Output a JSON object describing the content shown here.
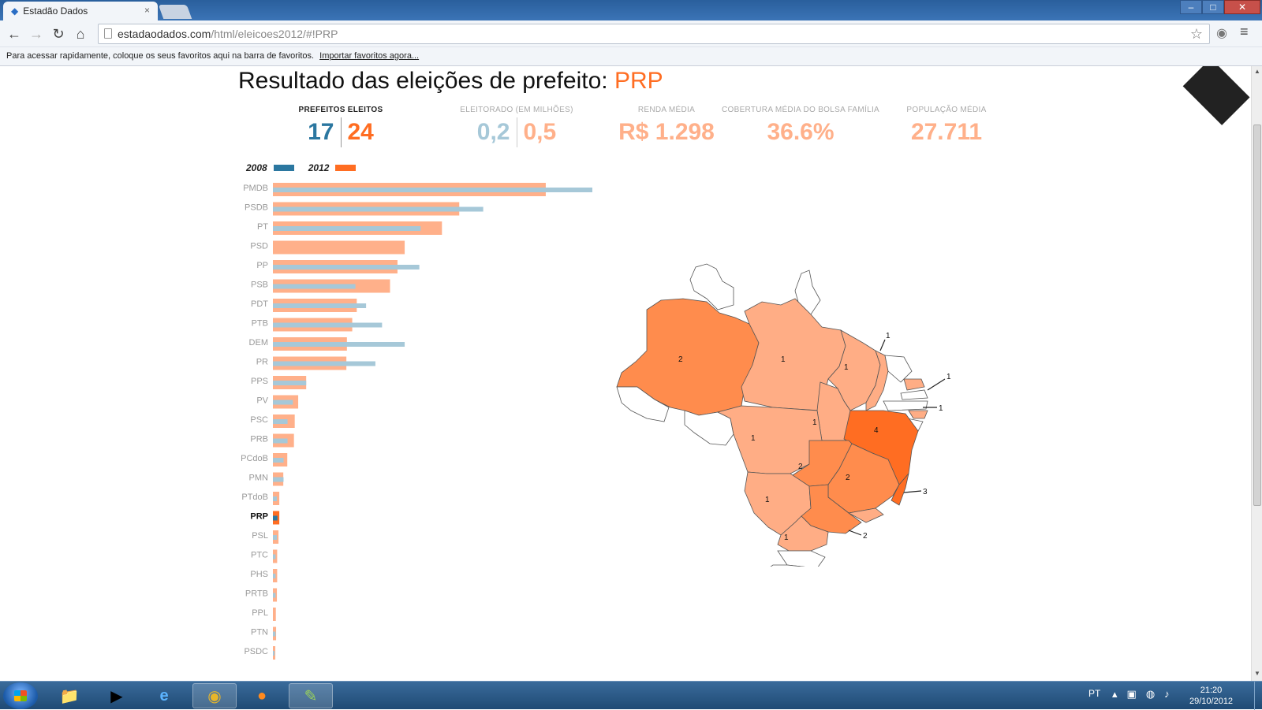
{
  "browser": {
    "tab_title": "Estadão Dados",
    "tab_close": "×",
    "url_host": "estadaodados.com",
    "url_path": "/html/eleicoes2012/#!PRP",
    "bookmarks_text": "Para acessar rapidamente, coloque os seus favoritos aqui na barra de favoritos.",
    "bookmarks_link": "Importar favoritos agora..."
  },
  "page": {
    "title_prefix": "Resultado das eleições de prefeito: ",
    "party": "PRP",
    "stats": {
      "prefeitos_label": "PREFEITOS ELEITOS",
      "prefeitos_2008": "17",
      "prefeitos_2012": "24",
      "eleitorado_label": "ELEITORADO (EM MILHÕES)",
      "eleitorado_2008": "0,2",
      "eleitorado_2012": "0,5",
      "renda_label": "RENDA MÉDIA",
      "renda_value": "R$ 1.298",
      "bolsa_label": "COBERTURA MÉDIA DO BOLSA FAMÍLIA",
      "bolsa_value": "36.6%",
      "populacao_label": "POPULAÇÃO MÉDIA",
      "populacao_value": "27.711"
    },
    "legend": {
      "y2008": "2008",
      "y2012": "2012"
    }
  },
  "colors": {
    "c2008": "#2b77a0",
    "c2012": "#ff6d22",
    "c2008_light": "#a6c8d8",
    "c2012_light": "#ffb08a",
    "map_high": "#ff6d22",
    "map_mid": "#ff8c4d",
    "map_low": "#ffad85",
    "map_none": "#ffffff"
  },
  "chart_data": {
    "type": "bar",
    "orientation": "horizontal",
    "highlight": "PRP",
    "categories": [
      "PMDB",
      "PSDB",
      "PT",
      "PSD",
      "PP",
      "PSB",
      "PDT",
      "PTB",
      "DEM",
      "PR",
      "PPS",
      "PV",
      "PSC",
      "PRB",
      "PCdoB",
      "PMN",
      "PTdoB",
      "PRP",
      "PSL",
      "PTC",
      "PHS",
      "PRTB",
      "PPL",
      "PTN",
      "PSDC"
    ],
    "series": [
      {
        "name": "2008",
        "values": [
          1200,
          790,
          555,
          0,
          550,
          310,
          350,
          410,
          495,
          385,
          125,
          75,
          55,
          55,
          40,
          40,
          15,
          17,
          15,
          10,
          10,
          10,
          0,
          10,
          5
        ]
      },
      {
        "name": "2012",
        "values": [
          1025,
          700,
          635,
          495,
          468,
          440,
          315,
          298,
          278,
          276,
          125,
          95,
          82,
          79,
          54,
          39,
          24,
          24,
          21,
          16,
          16,
          15,
          11,
          12,
          9
        ]
      }
    ],
    "xlim": [
      0,
      1250
    ]
  },
  "map_data": {
    "states": [
      {
        "code": "AM",
        "label": "2",
        "level": "mid"
      },
      {
        "code": "PA",
        "label": "1",
        "level": "low"
      },
      {
        "code": "MA",
        "label": "1",
        "level": "low"
      },
      {
        "code": "TO",
        "label": "1",
        "level": "low"
      },
      {
        "code": "MT",
        "label": "1",
        "level": "low"
      },
      {
        "code": "BA",
        "label": "4",
        "level": "high"
      },
      {
        "code": "GO",
        "label": "2",
        "level": "mid"
      },
      {
        "code": "MG",
        "label": "2",
        "level": "mid"
      },
      {
        "code": "MS",
        "label": "1",
        "level": "low"
      },
      {
        "code": "SP",
        "label": "",
        "level": "mid"
      },
      {
        "code": "PR",
        "label": "1",
        "level": "low"
      },
      {
        "code": "ES",
        "label": "3",
        "level": "high"
      },
      {
        "code": "RN",
        "label": "1",
        "level": "low"
      },
      {
        "code": "AL",
        "label": "1",
        "level": "low"
      },
      {
        "code": "PI",
        "label": "",
        "level": "low"
      },
      {
        "code": "RJ",
        "label": "",
        "level": "low"
      }
    ],
    "callouts": [
      {
        "label": "1"
      },
      {
        "label": "1"
      },
      {
        "label": "1"
      },
      {
        "label": "3"
      },
      {
        "label": "2"
      }
    ],
    "sp_label": "2"
  },
  "taskbar": {
    "lang": "PT",
    "time": "21:20",
    "date": "29/10/2012"
  }
}
